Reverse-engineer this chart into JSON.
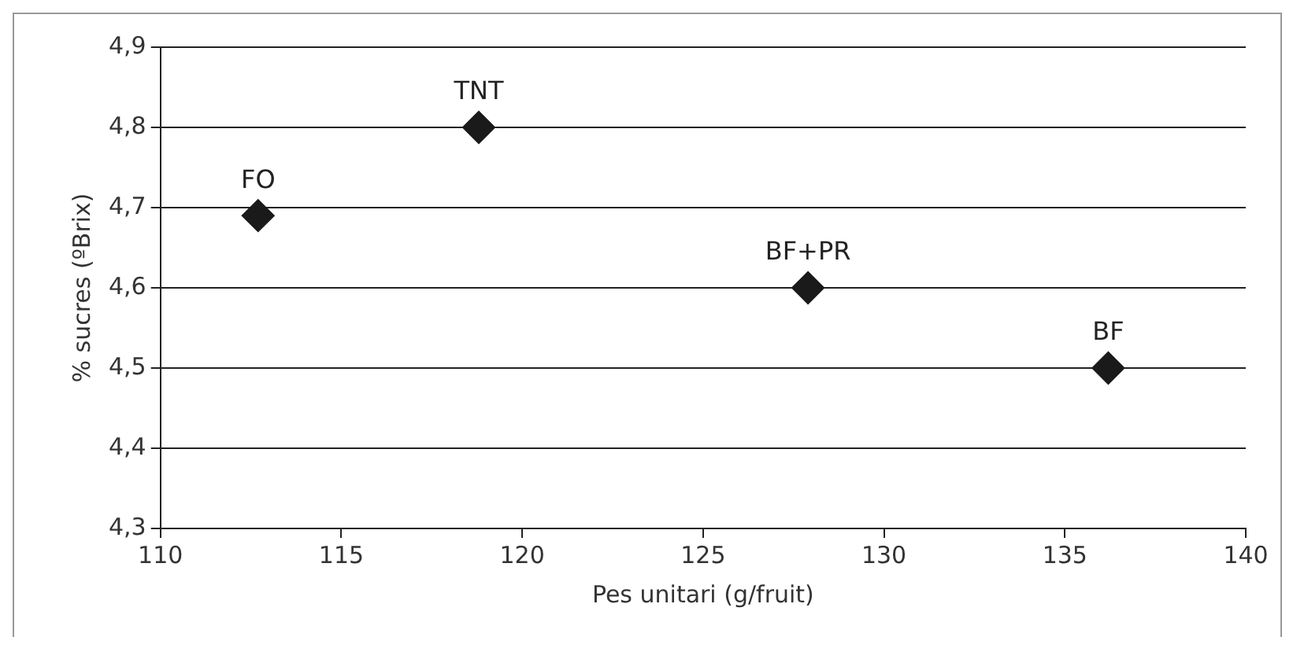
{
  "chart_data": {
    "type": "scatter",
    "xlabel": "Pes unitari (g/fruit)",
    "ylabel": "% sucres (ºBrix)",
    "x": [
      112.7,
      118.8,
      127.9,
      136.2
    ],
    "series": [
      {
        "color": "#1a1a1a",
        "values": [
          4.69,
          4.8,
          4.6,
          4.5
        ]
      }
    ],
    "xlim": [
      110,
      140
    ],
    "xticks": [
      110,
      115,
      120,
      125,
      130,
      135,
      140
    ],
    "ylim": [
      4.3,
      4.9
    ],
    "yticks": [
      {
        "value": 4.3,
        "label": "4,3"
      },
      {
        "value": 4.4,
        "label": "4,4"
      },
      {
        "value": 4.5,
        "label": "4,5"
      },
      {
        "value": 4.6,
        "label": "4,6"
      },
      {
        "value": 4.7,
        "label": "4,7"
      },
      {
        "value": 4.8,
        "label": "4,8"
      },
      {
        "value": 4.9,
        "label": "4,9"
      }
    ],
    "grid": "y",
    "legend": false,
    "marker": "diamond",
    "annotations": [
      {
        "text": "FO",
        "x": 112.7,
        "y": 4.69
      },
      {
        "text": "TNT",
        "x": 118.8,
        "y": 4.8
      },
      {
        "text": "BF+PR",
        "x": 127.9,
        "y": 4.6
      },
      {
        "text": "BF",
        "x": 136.2,
        "y": 4.5
      }
    ]
  }
}
